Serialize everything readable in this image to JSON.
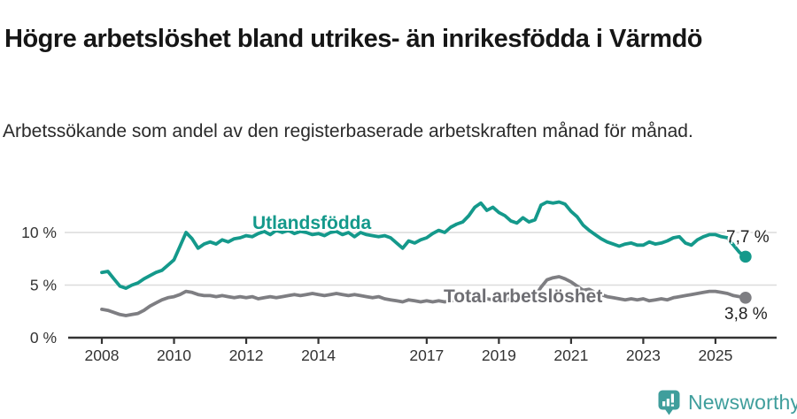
{
  "header": {
    "title": "Högre arbetslöshet bland utrikes- än inrikesfödda i Värmdö",
    "subtitle": "Arbetssökande som andel av den registerbaserade arbetskraften månad för månad."
  },
  "chart_data": {
    "type": "line",
    "unit": "%",
    "x_start_year": 2008,
    "x_step_months": 2,
    "x_ticks": [
      2008,
      2010,
      2012,
      2014,
      2017,
      2019,
      2021,
      2023,
      2025
    ],
    "y_ticks": [
      {
        "value": 0,
        "label": "0 %"
      },
      {
        "value": 5,
        "label": "5 %"
      },
      {
        "value": 10,
        "label": "10 %"
      }
    ],
    "ylim": [
      0,
      14
    ],
    "grid": "horizontal",
    "legend_position": "inline-labels",
    "axis_color": "#333333",
    "grid_color": "#dcdcdc",
    "series": [
      {
        "name": "Utlandsfödda",
        "color": "#14998b",
        "label_color": "#14998b",
        "end_label": "7,7 %",
        "end_value": 7.7,
        "values": [
          6.2,
          6.3,
          5.6,
          4.9,
          4.7,
          5.0,
          5.2,
          5.6,
          5.9,
          6.2,
          6.4,
          6.9,
          7.4,
          8.7,
          10.0,
          9.4,
          8.5,
          8.9,
          9.1,
          8.9,
          9.3,
          9.1,
          9.4,
          9.5,
          9.7,
          9.6,
          9.9,
          10.1,
          9.8,
          10.2,
          10.0,
          10.2,
          9.9,
          10.1,
          10.0,
          9.8,
          9.9,
          9.7,
          10.0,
          10.1,
          9.8,
          10.0,
          9.6,
          10.0,
          9.8,
          9.7,
          9.6,
          9.7,
          9.5,
          9.0,
          8.5,
          9.2,
          9.0,
          9.3,
          9.5,
          9.9,
          10.2,
          10.0,
          10.5,
          10.8,
          11.0,
          11.6,
          12.4,
          12.8,
          12.1,
          12.4,
          11.9,
          11.6,
          11.1,
          10.9,
          11.4,
          11.0,
          11.2,
          12.6,
          12.9,
          12.8,
          12.9,
          12.7,
          12.0,
          11.5,
          10.7,
          10.2,
          9.8,
          9.4,
          9.1,
          8.9,
          8.7,
          8.9,
          9.0,
          8.8,
          8.8,
          9.1,
          8.9,
          9.0,
          9.2,
          9.5,
          9.6,
          9.0,
          8.8,
          9.3,
          9.6,
          9.8,
          9.8,
          9.6,
          9.5,
          8.8,
          8.1,
          7.7
        ]
      },
      {
        "name": "Total arbetslöshet",
        "color": "#7e7e82",
        "label_color": "#6e6e73",
        "end_label": "3,8 %",
        "end_value": 3.8,
        "values": [
          2.7,
          2.6,
          2.4,
          2.2,
          2.1,
          2.2,
          2.3,
          2.6,
          3.0,
          3.3,
          3.6,
          3.8,
          3.9,
          4.1,
          4.4,
          4.3,
          4.1,
          4.0,
          4.0,
          3.9,
          4.0,
          3.9,
          3.8,
          3.9,
          3.8,
          3.9,
          3.7,
          3.8,
          3.9,
          3.8,
          3.9,
          4.0,
          4.1,
          4.0,
          4.1,
          4.2,
          4.1,
          4.0,
          4.1,
          4.2,
          4.1,
          4.0,
          4.1,
          4.0,
          3.9,
          3.8,
          3.9,
          3.7,
          3.6,
          3.5,
          3.4,
          3.6,
          3.5,
          3.4,
          3.5,
          3.4,
          3.5,
          3.4,
          3.5,
          3.6,
          3.5,
          3.6,
          3.5,
          3.6,
          3.7,
          3.6,
          3.7,
          3.6,
          3.7,
          3.8,
          3.7,
          3.8,
          3.9,
          4.8,
          5.5,
          5.7,
          5.8,
          5.6,
          5.3,
          4.9,
          4.5,
          4.6,
          4.3,
          4.1,
          3.9,
          3.8,
          3.7,
          3.6,
          3.7,
          3.6,
          3.7,
          3.5,
          3.6,
          3.7,
          3.6,
          3.8,
          3.9,
          4.0,
          4.1,
          4.2,
          4.3,
          4.4,
          4.4,
          4.3,
          4.2,
          4.0,
          3.9,
          3.8
        ]
      }
    ]
  },
  "footer": {
    "brand": "Newsworthy",
    "brand_color": "#3f9e9c"
  }
}
